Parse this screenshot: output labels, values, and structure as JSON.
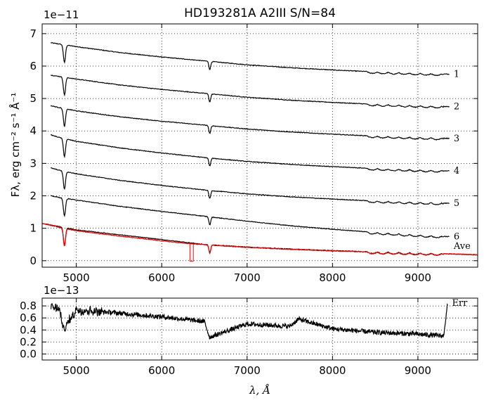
{
  "chart_data": [
    {
      "type": "line",
      "title": "HD193281A  A2III  S/N=84",
      "ylabel": "Fλ, erg cm⁻² s⁻¹ Å⁻¹",
      "xlabel": "",
      "y_exponent_label": "1e−11",
      "xlim": [
        4600,
        9700
      ],
      "ylim": [
        -0.2,
        7.3
      ],
      "grid": true,
      "x_ticks": [
        "5000",
        "6000",
        "7000",
        "8000",
        "9000"
      ],
      "y_ticks": [
        "0",
        "1",
        "2",
        "3",
        "4",
        "5",
        "6",
        "7"
      ],
      "series": [
        {
          "name": "1",
          "color": "#000000",
          "offset": 5.0,
          "x": [
            4700,
            4800,
            5000,
            5500,
            6000,
            6500,
            7000,
            7500,
            8000,
            8500,
            9000,
            9370
          ],
          "values": [
            6.72,
            6.68,
            6.6,
            6.42,
            6.28,
            6.16,
            6.04,
            5.95,
            5.88,
            5.82,
            5.78,
            5.75
          ]
        },
        {
          "name": "2",
          "color": "#000000",
          "offset": 4.0,
          "x": [
            4700,
            4800,
            5000,
            5500,
            6000,
            6500,
            7000,
            7500,
            8000,
            8500,
            9000,
            9370
          ],
          "values": [
            5.72,
            5.68,
            5.6,
            5.42,
            5.28,
            5.16,
            5.04,
            4.95,
            4.88,
            4.82,
            4.78,
            4.75
          ]
        },
        {
          "name": "3",
          "color": "#000000",
          "offset": 3.0,
          "x": [
            4700,
            4800,
            5000,
            5500,
            6000,
            6500,
            7000,
            7500,
            8000,
            8500,
            9000,
            9370
          ],
          "values": [
            4.78,
            4.72,
            4.62,
            4.44,
            4.3,
            4.18,
            4.06,
            3.97,
            3.9,
            3.84,
            3.8,
            3.77
          ]
        },
        {
          "name": "4",
          "color": "#000000",
          "offset": 2.0,
          "x": [
            4700,
            4800,
            5000,
            5500,
            6000,
            6500,
            7000,
            7500,
            8000,
            8500,
            9000,
            9370
          ],
          "values": [
            3.88,
            3.8,
            3.68,
            3.48,
            3.32,
            3.18,
            3.06,
            2.97,
            2.9,
            2.84,
            2.8,
            2.77
          ]
        },
        {
          "name": "5",
          "color": "#000000",
          "offset": 1.0,
          "x": [
            4700,
            4800,
            5000,
            5500,
            6000,
            6500,
            7000,
            7500,
            8000,
            8500,
            9000,
            9370
          ],
          "values": [
            2.86,
            2.79,
            2.68,
            2.48,
            2.32,
            2.18,
            2.06,
            1.97,
            1.9,
            1.84,
            1.8,
            1.77
          ]
        },
        {
          "name": "6",
          "color": "#000000",
          "offset": 0.0,
          "x": [
            4700,
            4800,
            5000,
            5500,
            6000,
            6500,
            7000,
            7500,
            8000,
            8500,
            9000,
            9370
          ],
          "values": [
            2.0,
            1.95,
            1.87,
            1.68,
            1.52,
            1.37,
            1.22,
            1.08,
            0.97,
            0.87,
            0.79,
            0.74
          ]
        },
        {
          "name": "Ave",
          "color": "#000000",
          "offset": 0.0,
          "x": [
            4600,
            4800,
            5000,
            5500,
            6000,
            6500,
            7000,
            7500,
            8000,
            8500,
            9000,
            9370,
            9700
          ],
          "values": [
            1.15,
            1.05,
            0.95,
            0.8,
            0.65,
            0.5,
            0.42,
            0.36,
            0.31,
            0.27,
            0.24,
            0.21,
            0.18
          ]
        },
        {
          "name": "",
          "color": "#ff0000",
          "x": [
            4600,
            4800,
            5000,
            5500,
            6000,
            6300,
            6500,
            7000,
            7500,
            8000,
            8500,
            9000,
            9370,
            9700
          ],
          "values": [
            1.15,
            1.03,
            0.92,
            0.76,
            0.61,
            0.53,
            0.49,
            0.41,
            0.35,
            0.3,
            0.26,
            0.23,
            0.21,
            0.18
          ]
        }
      ],
      "absorption_lines": [
        4861,
        6563
      ],
      "labels": [
        "1",
        "2",
        "3",
        "4",
        "5",
        "6",
        "Ave"
      ]
    },
    {
      "type": "line",
      "title": "",
      "xlabel": "λ, Å",
      "ylabel": "",
      "y_exponent_label": "1e−13",
      "xlim": [
        4600,
        9700
      ],
      "ylim": [
        -0.1,
        0.93
      ],
      "grid": true,
      "x_ticks": [
        "5000",
        "6000",
        "7000",
        "8000",
        "9000"
      ],
      "y_ticks": [
        "0.0",
        "0.2",
        "0.4",
        "0.6",
        "0.8"
      ],
      "series": [
        {
          "name": "Err",
          "color": "#000000",
          "x": [
            4700,
            4800,
            4850,
            5000,
            5500,
            6000,
            6500,
            6560,
            7000,
            7500,
            7600,
            8000,
            8500,
            9000,
            9300,
            9350
          ],
          "values": [
            0.78,
            0.75,
            0.4,
            0.74,
            0.68,
            0.62,
            0.54,
            0.28,
            0.5,
            0.46,
            0.58,
            0.42,
            0.36,
            0.33,
            0.3,
            0.85
          ]
        }
      ],
      "labels": [
        "Err"
      ]
    }
  ]
}
